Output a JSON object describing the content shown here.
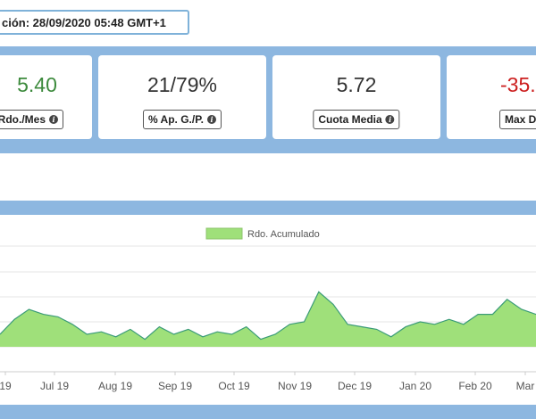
{
  "header": {
    "update_text": "ción: 28/09/2020 05:48 GMT+1"
  },
  "stats": [
    {
      "value": "5.40",
      "label": "Rdo./Mes",
      "value_color": "#3c8a3c"
    },
    {
      "value": "21/79%",
      "label": "% Ap. G./P.",
      "value_color": "#333333"
    },
    {
      "value": "5.72",
      "label": "Cuota Media",
      "value_color": "#333333"
    },
    {
      "value": "-35.",
      "label": "Max D",
      "value_color": "#cc1f1f"
    }
  ],
  "info_icon": "info-circle-icon",
  "chart_data": {
    "type": "area",
    "title": "",
    "xlabel": "",
    "ylabel": "",
    "legend": {
      "entries": [
        "Rdo. Acumulado"
      ],
      "placement": "top-center"
    },
    "series": [
      {
        "name": "Rdo. Acumulado",
        "color": "#9fe07a",
        "line_color": "#3a9b78",
        "values": [
          0.5,
          1.1,
          1.5,
          1.3,
          1.2,
          0.9,
          0.5,
          0.6,
          0.4,
          0.7,
          0.3,
          0.8,
          0.5,
          0.7,
          0.4,
          0.6,
          0.5,
          0.8,
          0.3,
          0.5,
          0.9,
          1.0,
          2.2,
          1.7,
          0.9,
          0.8,
          0.7,
          0.4,
          0.8,
          1.0,
          0.9,
          1.1,
          0.9,
          1.3,
          1.3,
          1.9,
          1.5,
          1.3
        ]
      }
    ],
    "x_tick_labels": [
      "19",
      "Jul 19",
      "Aug 19",
      "Sep 19",
      "Oct 19",
      "Nov 19",
      "Dec 19",
      "Jan 20",
      "Feb 20",
      "Mar"
    ],
    "grid": true
  }
}
